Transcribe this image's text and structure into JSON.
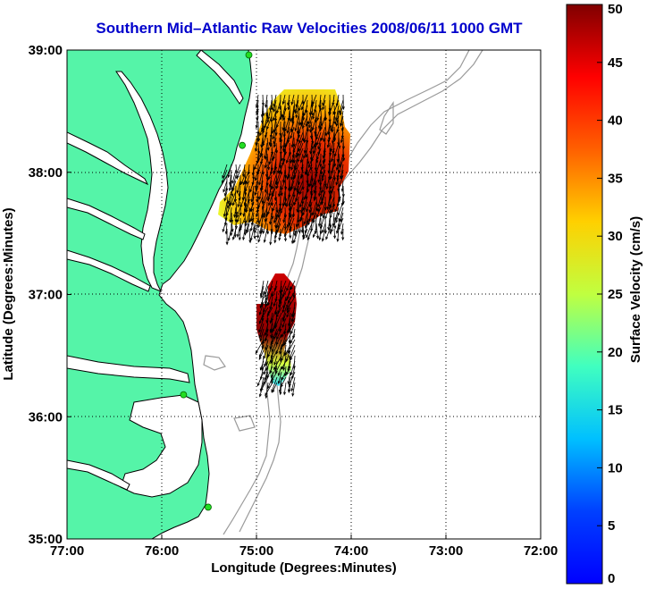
{
  "title": "Southern Mid–Atlantic Raw Velocities 2008/06/11 1000 GMT",
  "axes": {
    "xlabel": "Longitude (Degrees:Minutes)",
    "ylabel": "Latitude (Degrees:Minutes)",
    "x_ticks": [
      "77:00",
      "76:00",
      "75:00",
      "74:00",
      "73:00",
      "72:00"
    ],
    "y_ticks": [
      "39:00",
      "38:00",
      "37:00",
      "36:00",
      "35:00"
    ],
    "xlim": [
      -77,
      -72
    ],
    "ylim": [
      35,
      39
    ],
    "grid": "dotted"
  },
  "colorbar": {
    "label": "Surface Velocity (cm/s)",
    "ticks": [
      "0",
      "5",
      "10",
      "15",
      "20",
      "25",
      "30",
      "35",
      "40",
      "45",
      "50"
    ],
    "range": [
      0,
      50
    ],
    "colormap": "jet"
  },
  "colors": {
    "land": "#55f4a8",
    "ocean": "#ffffff",
    "bathymetry": "#9a9a9a",
    "coast": "#000000",
    "title": "#0000cc",
    "station": "#22dd22"
  },
  "stations": [
    {
      "lon": -75.08,
      "lat": 38.96
    },
    {
      "lon": -75.15,
      "lat": 38.22
    },
    {
      "lon": -75.77,
      "lat": 36.18
    },
    {
      "lon": -75.51,
      "lat": 35.26
    }
  ]
}
